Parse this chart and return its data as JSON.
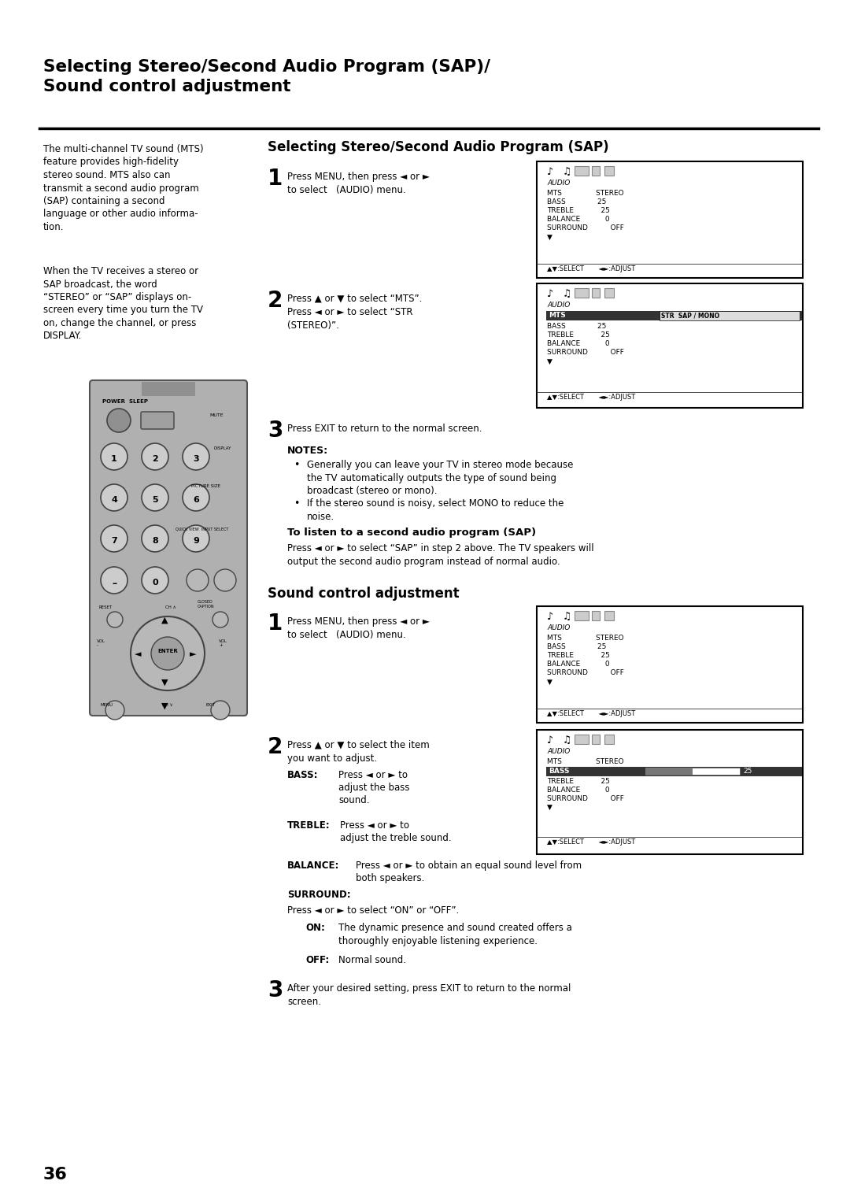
{
  "bg_color": "#ffffff",
  "page_num": "36",
  "main_title": "Selecting Stereo/Second Audio Program (SAP)/\nSound control adjustment",
  "section1_title": "Selecting Stereo/Second Audio Program (SAP)",
  "section2_title": "Sound control adjustment",
  "left_col_text_1": "The multi-channel TV sound (MTS)\nfeature provides high-fidelity\nstereo sound. MTS also can\ntransmit a second audio program\n(SAP) containing a second\nlanguage or other audio informa-\ntion.",
  "left_col_text_2": "When the TV receives a stereo or\nSAP broadcast, the word\n“STEREO” or “SAP” displays on-\nscreen every time you turn the TV\non, change the channel, or press\nDISPLAY.",
  "note1": "Generally you can leave your TV in stereo mode because\nthe TV automatically outputs the type of sound being\nbroadcast (stereo or mono).",
  "note2": "If the stereo sound is noisy, select MONO to reduce the\nnoise.",
  "sap_subtitle": "To listen to a second audio program (SAP)",
  "sap_sub_text": "Press ◄ or ► to select “SAP” in step 2 above. The TV speakers will\noutput the second audio program instead of normal audio."
}
